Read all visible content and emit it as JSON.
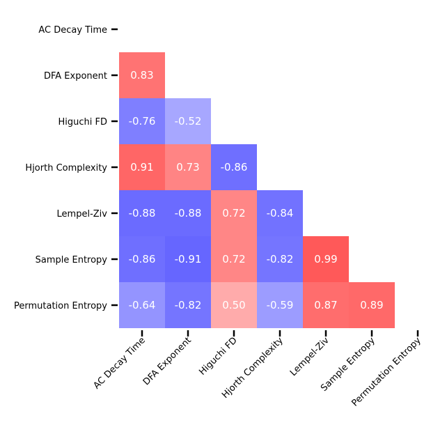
{
  "chart_data": {
    "type": "heatmap",
    "variant": "lower-triangle correlation matrix",
    "variables": [
      "AC Decay Time",
      "DFA Exponent",
      "Higuchi FD",
      "Hjorth Complexity",
      "Lempel-Ziv",
      "Sample Entropy",
      "Permutation Entropy"
    ],
    "matrix": [
      [
        null,
        null,
        null,
        null,
        null,
        null,
        null
      ],
      [
        0.83,
        null,
        null,
        null,
        null,
        null,
        null
      ],
      [
        -0.76,
        -0.52,
        null,
        null,
        null,
        null,
        null
      ],
      [
        0.91,
        0.73,
        -0.86,
        null,
        null,
        null,
        null
      ],
      [
        -0.88,
        -0.88,
        0.72,
        -0.84,
        null,
        null,
        null
      ],
      [
        -0.86,
        -0.91,
        0.72,
        -0.82,
        0.99,
        null,
        null
      ],
      [
        -0.64,
        -0.82,
        0.5,
        -0.59,
        0.87,
        0.89,
        null
      ]
    ],
    "value_labels": [
      [
        null,
        null,
        null,
        null,
        null,
        null,
        null
      ],
      [
        "0.83",
        null,
        null,
        null,
        null,
        null,
        null
      ],
      [
        "-0.76",
        "-0.52",
        null,
        null,
        null,
        null,
        null
      ],
      [
        "0.91",
        "0.73",
        "-0.86",
        null,
        null,
        null,
        null
      ],
      [
        "-0.88",
        "-0.88",
        "0.72",
        "-0.84",
        null,
        null,
        null
      ],
      [
        "-0.86",
        "-0.91",
        "0.72",
        "-0.82",
        "0.99",
        null,
        null
      ],
      [
        "-0.64",
        "-0.82",
        "0.50",
        "-0.59",
        "0.87",
        "0.89",
        null
      ]
    ],
    "value_range": [
      -1,
      1
    ],
    "colormap": "bwr",
    "colorbar": false,
    "grid": false,
    "x_tick_rotation_deg": 45,
    "title": "",
    "xlabel": "",
    "ylabel": "",
    "colors": {
      "negative": "#0000ff",
      "neutral": "#ffffff",
      "positive": "#ff0000",
      "cell_text": "#ffffff",
      "tick_text": "#000000"
    }
  }
}
